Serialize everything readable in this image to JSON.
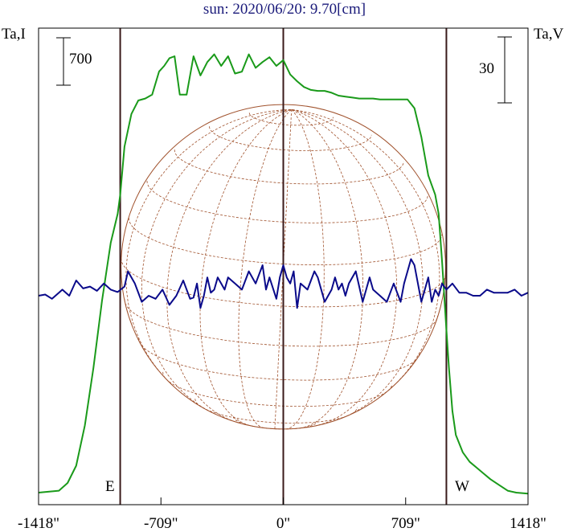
{
  "title": "sun: 2020/06/20: 9.70[cm]",
  "left_axis_label": "Ta,I",
  "right_axis_label": "Ta,V",
  "left_scale_label": "700",
  "right_scale_label": "30",
  "east_label": "E",
  "west_label": "W",
  "colors": {
    "intensity": "#1a9a1a",
    "polarization": "#0a0a8a",
    "disk": "#a0522d",
    "limb_lines": "#3a1a1a",
    "axis": "#000000"
  },
  "chart_data": {
    "type": "line",
    "title": "sun: 2020/06/20: 9.70[cm]",
    "xlabel": "",
    "xlim": [
      -1418,
      1418
    ],
    "x_ticks": [
      -1418,
      -709,
      0,
      709,
      1418
    ],
    "x_tick_labels": [
      "-1418\"",
      "-709\"",
      "0\"",
      "709\"",
      "1418\""
    ],
    "solar_limb_arcsec": [
      -945,
      945
    ],
    "vertical_markers": [
      -945,
      0,
      945
    ],
    "scale_bars": {
      "left": 700,
      "right": 30
    },
    "grid": false,
    "series": [
      {
        "key": "intensity",
        "axis_label": "Ta,I",
        "x": [
          -1418,
          -1300,
          -1250,
          -1200,
          -1150,
          -1100,
          -1050,
          -1000,
          -960,
          -945,
          -920,
          -880,
          -840,
          -800,
          -760,
          -720,
          -690,
          -660,
          -630,
          -600,
          -560,
          -520,
          -480,
          -440,
          -400,
          -360,
          -320,
          -280,
          -240,
          -200,
          -160,
          -120,
          -80,
          -40,
          0,
          40,
          80,
          120,
          160,
          200,
          240,
          280,
          320,
          360,
          400,
          440,
          480,
          520,
          560,
          600,
          640,
          680,
          720,
          760,
          800,
          840,
          860,
          880,
          900,
          920,
          945,
          960,
          980,
          1000,
          1040,
          1080,
          1120,
          1160,
          1200,
          1250,
          1300,
          1350,
          1418
        ],
        "y": [
          100,
          120,
          200,
          380,
          800,
          1400,
          2100,
          2700,
          3000,
          3200,
          3700,
          4040,
          4180,
          4200,
          4240,
          4480,
          4540,
          4620,
          4640,
          4240,
          4240,
          4640,
          4440,
          4580,
          4660,
          4540,
          4640,
          4460,
          4480,
          4660,
          4520,
          4580,
          4630,
          4540,
          4600,
          4450,
          4380,
          4320,
          4290,
          4280,
          4280,
          4260,
          4230,
          4220,
          4210,
          4200,
          4200,
          4200,
          4190,
          4190,
          4190,
          4190,
          4190,
          4100,
          3800,
          3400,
          3300,
          3200,
          3000,
          2500,
          1800,
          1400,
          950,
          700,
          520,
          420,
          360,
          300,
          240,
          180,
          120,
          100,
          90
        ]
      },
      {
        "key": "polarization",
        "axis_label": "Ta,V",
        "x": [
          -1418,
          -1380,
          -1340,
          -1300,
          -1280,
          -1260,
          -1240,
          -1200,
          -1160,
          -1120,
          -1080,
          -1040,
          -1000,
          -960,
          -920,
          -900,
          -860,
          -820,
          -780,
          -740,
          -700,
          -660,
          -620,
          -580,
          -540,
          -520,
          -500,
          -480,
          -460,
          -440,
          -420,
          -400,
          -380,
          -360,
          -340,
          -320,
          -280,
          -240,
          -200,
          -160,
          -120,
          -100,
          -80,
          -40,
          -20,
          0,
          20,
          40,
          60,
          80,
          100,
          140,
          180,
          200,
          240,
          280,
          300,
          320,
          340,
          360,
          380,
          420,
          460,
          500,
          520,
          560,
          600,
          640,
          680,
          700,
          720,
          740,
          760,
          800,
          840,
          860,
          880,
          900,
          920,
          945,
          980,
          1020,
          1060,
          1100,
          1140,
          1180,
          1220,
          1260,
          1300,
          1340,
          1380,
          1418
        ],
        "y": [
          0,
          0.2,
          -0.5,
          0.5,
          1,
          0.5,
          0,
          2.5,
          1.2,
          1.5,
          0.8,
          2,
          1,
          0.6,
          1.5,
          4,
          2,
          -1,
          0,
          -0.5,
          1,
          -1.5,
          0,
          2.5,
          -0.5,
          -0.3,
          2,
          -2,
          0,
          3,
          0.5,
          1,
          3,
          2,
          1,
          3,
          2,
          1,
          4,
          2,
          5,
          1,
          3,
          -0.5,
          3,
          5,
          3,
          2,
          4,
          -2,
          2,
          1,
          4,
          3,
          -1,
          1,
          3,
          1,
          2,
          0,
          2,
          4,
          -1,
          3,
          1,
          0,
          -1,
          2,
          -1,
          2,
          4,
          6,
          5,
          -1,
          3,
          -1,
          1,
          0,
          2,
          1,
          2,
          0.5,
          0.5,
          0,
          0,
          1,
          0.5,
          0.5,
          0.5,
          1,
          0,
          0.5
        ]
      }
    ]
  }
}
